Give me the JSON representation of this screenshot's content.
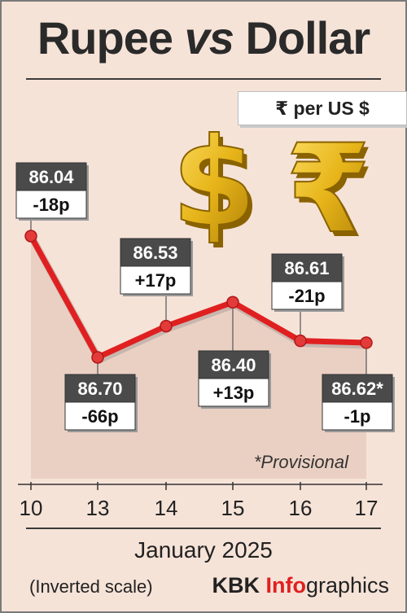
{
  "header": {
    "title_part1": "Rupee",
    "title_part2": "vs",
    "title_part3": "Dollar",
    "unit": "₹ per US $"
  },
  "chart_data": {
    "type": "line",
    "x": [
      "10",
      "13",
      "14",
      "15",
      "16",
      "17"
    ],
    "series": [
      {
        "values": [
          86.04,
          86.7,
          86.53,
          86.4,
          86.61,
          86.62
        ],
        "changes": [
          "-18p",
          "-66p",
          "+17p",
          "+13p",
          "-21p",
          "-1p"
        ],
        "value_labels": [
          "86.04",
          "86.70",
          "86.53",
          "86.40",
          "86.61",
          "86.62*"
        ]
      }
    ],
    "xlabel": "January 2025",
    "ylabel": "₹ per US $",
    "y_inverted": true,
    "note": "*Provisional",
    "scale_note": "(Inverted scale)",
    "colors": {
      "line": "#e02020",
      "marker": "#e33a3a",
      "value_box": "#4a4a4a",
      "area": "#e7ccc0"
    }
  },
  "footer": {
    "credit_part1": "KBK ",
    "credit_part2": "Info",
    "credit_part3": "graphics"
  }
}
